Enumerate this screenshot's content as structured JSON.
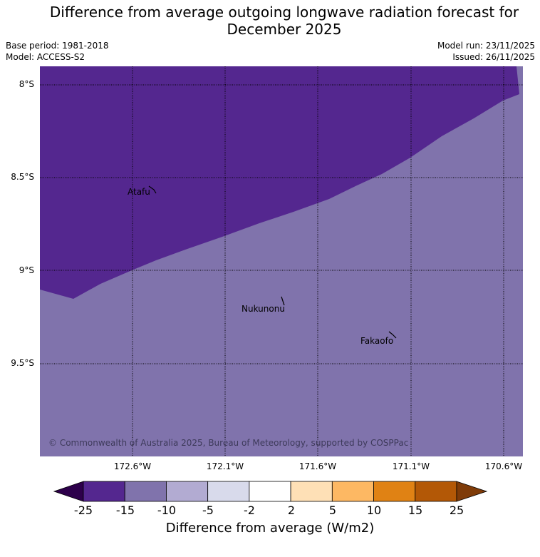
{
  "title_line1": "Difference from average outgoing longwave radiation forecast for",
  "title_line2": "December 2025",
  "base_period": "Base period: 1981-2018",
  "model": "Model: ACCESS-S2",
  "model_run": "Model run: 23/11/2025",
  "issued": "Issued: 26/11/2025",
  "lat_labels": [
    "8°S",
    "8.5°S",
    "9°S",
    "9.5°S"
  ],
  "lon_labels": [
    "172.6°W",
    "172.1°W",
    "171.6°W",
    "171.1°W",
    "170.6°W"
  ],
  "places": [
    "Atafu",
    "Nukunonu",
    "Fakaofo"
  ],
  "copyright": "© Commonwealth of Australia 2025, Bureau of Meteorology, supported by COSPPac",
  "colorbar": {
    "ticks": [
      "-25",
      "-15",
      "-10",
      "-5",
      "-2",
      "2",
      "5",
      "10",
      "15",
      "25"
    ],
    "colors": [
      "#54278f",
      "#8073ac",
      "#b2abd2",
      "#d8daeb",
      "#ffffff",
      "#fee0b6",
      "#fdb863",
      "#e08214",
      "#b35806"
    ],
    "extend_low_color": "#2d004b",
    "extend_high_color": "#7f3b08",
    "label": "Difference from average (W/m2)"
  },
  "map_colors": {
    "dark_region": "#54278f",
    "light_region": "#8073ac"
  }
}
